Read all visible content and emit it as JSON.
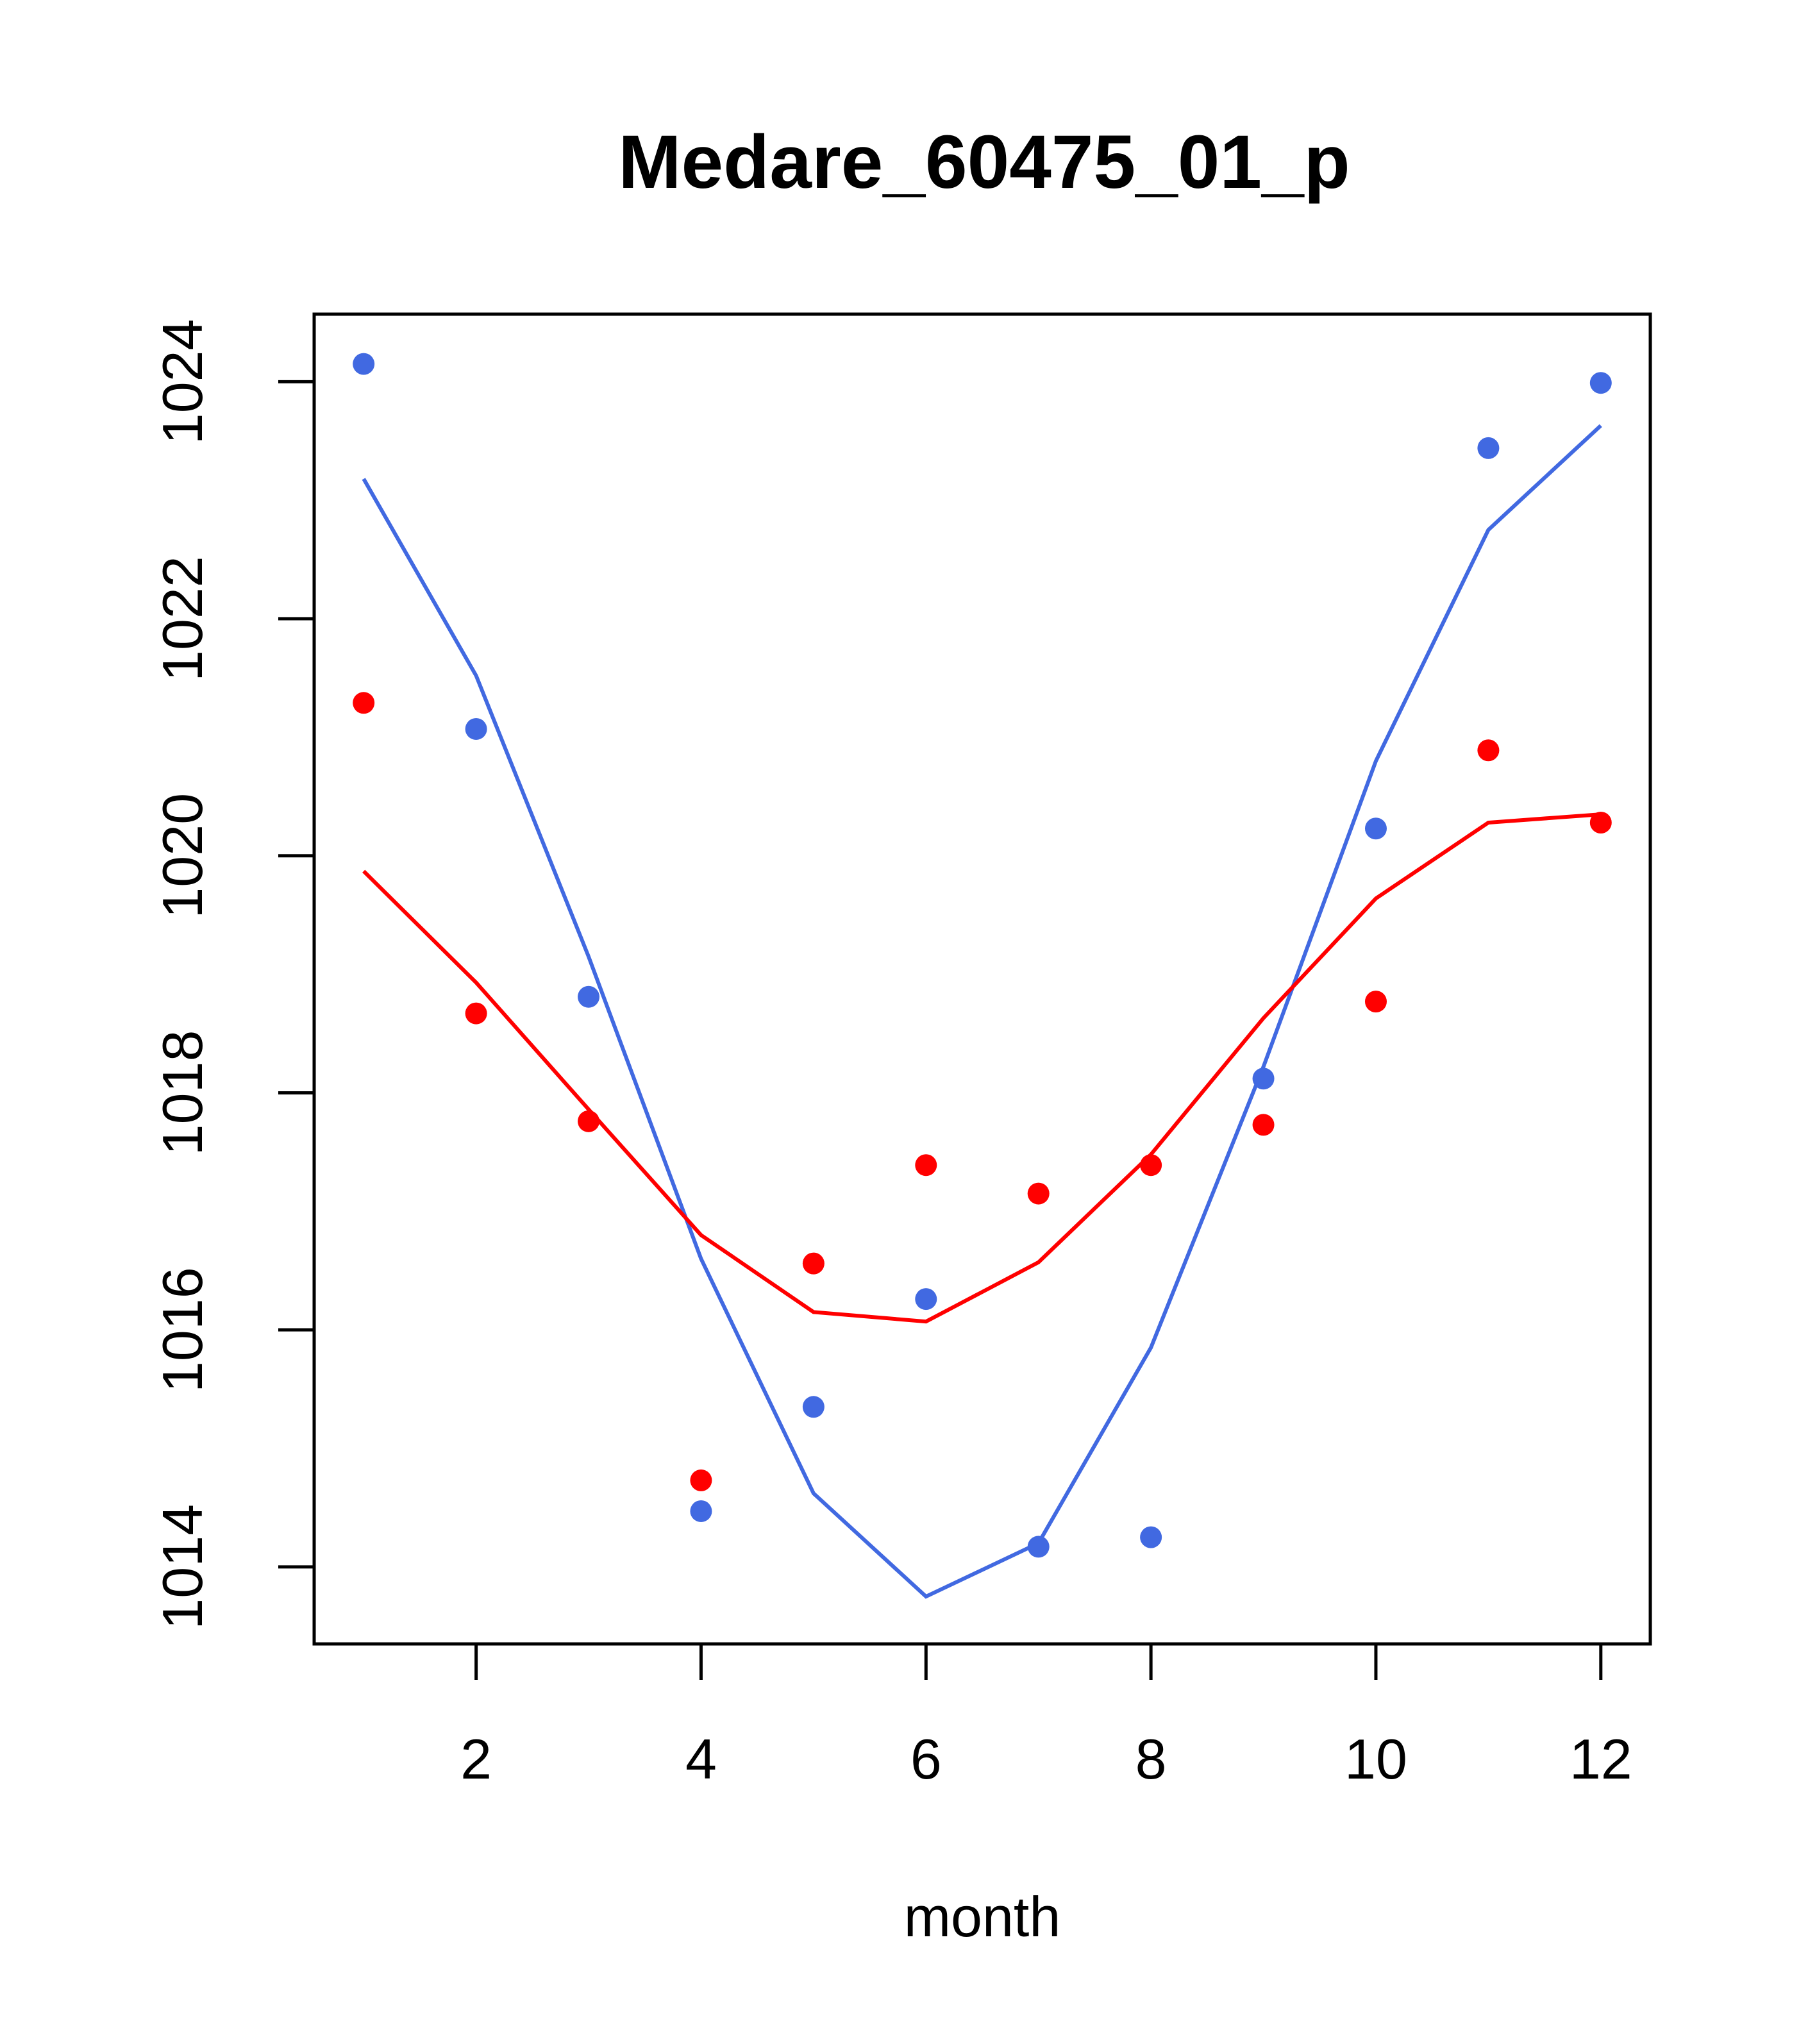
{
  "chart_data": {
    "type": "line",
    "title": "Medare_60475_01_p",
    "xlabel": "month",
    "ylabel": "",
    "xlim": [
      0.56,
      12.44
    ],
    "ylim": [
      1013.35,
      1024.57
    ],
    "x_ticks": [
      2,
      4,
      6,
      8,
      10,
      12
    ],
    "x_tick_labels": [
      "2",
      "4",
      "6",
      "8",
      "10",
      "12"
    ],
    "y_ticks": [
      1014,
      1016,
      1018,
      1020,
      1022,
      1024
    ],
    "y_tick_labels": [
      "1014",
      "1016",
      "1018",
      "1020",
      "1022",
      "1024"
    ],
    "grid": false,
    "legend": "none",
    "x": [
      1,
      2,
      3,
      4,
      5,
      6,
      7,
      8,
      9,
      10,
      11,
      12
    ],
    "series": [
      {
        "name": "blue-points",
        "kind": "points",
        "color": "#4169E1",
        "values": [
          1024.15,
          1021.07,
          1018.81,
          1014.47,
          1015.35,
          1016.26,
          1014.17,
          1014.25,
          1018.12,
          1020.23,
          1023.44,
          1023.99
        ]
      },
      {
        "name": "blue-line",
        "kind": "line",
        "color": "#4169E1",
        "values": [
          1023.18,
          1021.52,
          1019.15,
          1016.6,
          1014.62,
          1013.75,
          1014.2,
          1015.85,
          1018.22,
          1020.8,
          1022.75,
          1023.63
        ]
      },
      {
        "name": "red-points",
        "kind": "points",
        "color": "#FF0000",
        "values": [
          1021.29,
          1018.67,
          1017.76,
          1014.73,
          1016.56,
          1017.39,
          1017.15,
          1017.39,
          1017.73,
          1018.77,
          1020.89,
          1020.28
        ]
      },
      {
        "name": "red-line",
        "kind": "line",
        "color": "#FF0000",
        "values": [
          1019.87,
          1018.93,
          1017.86,
          1016.8,
          1016.15,
          1016.07,
          1016.57,
          1017.48,
          1018.63,
          1019.64,
          1020.28,
          1020.35
        ]
      }
    ]
  }
}
